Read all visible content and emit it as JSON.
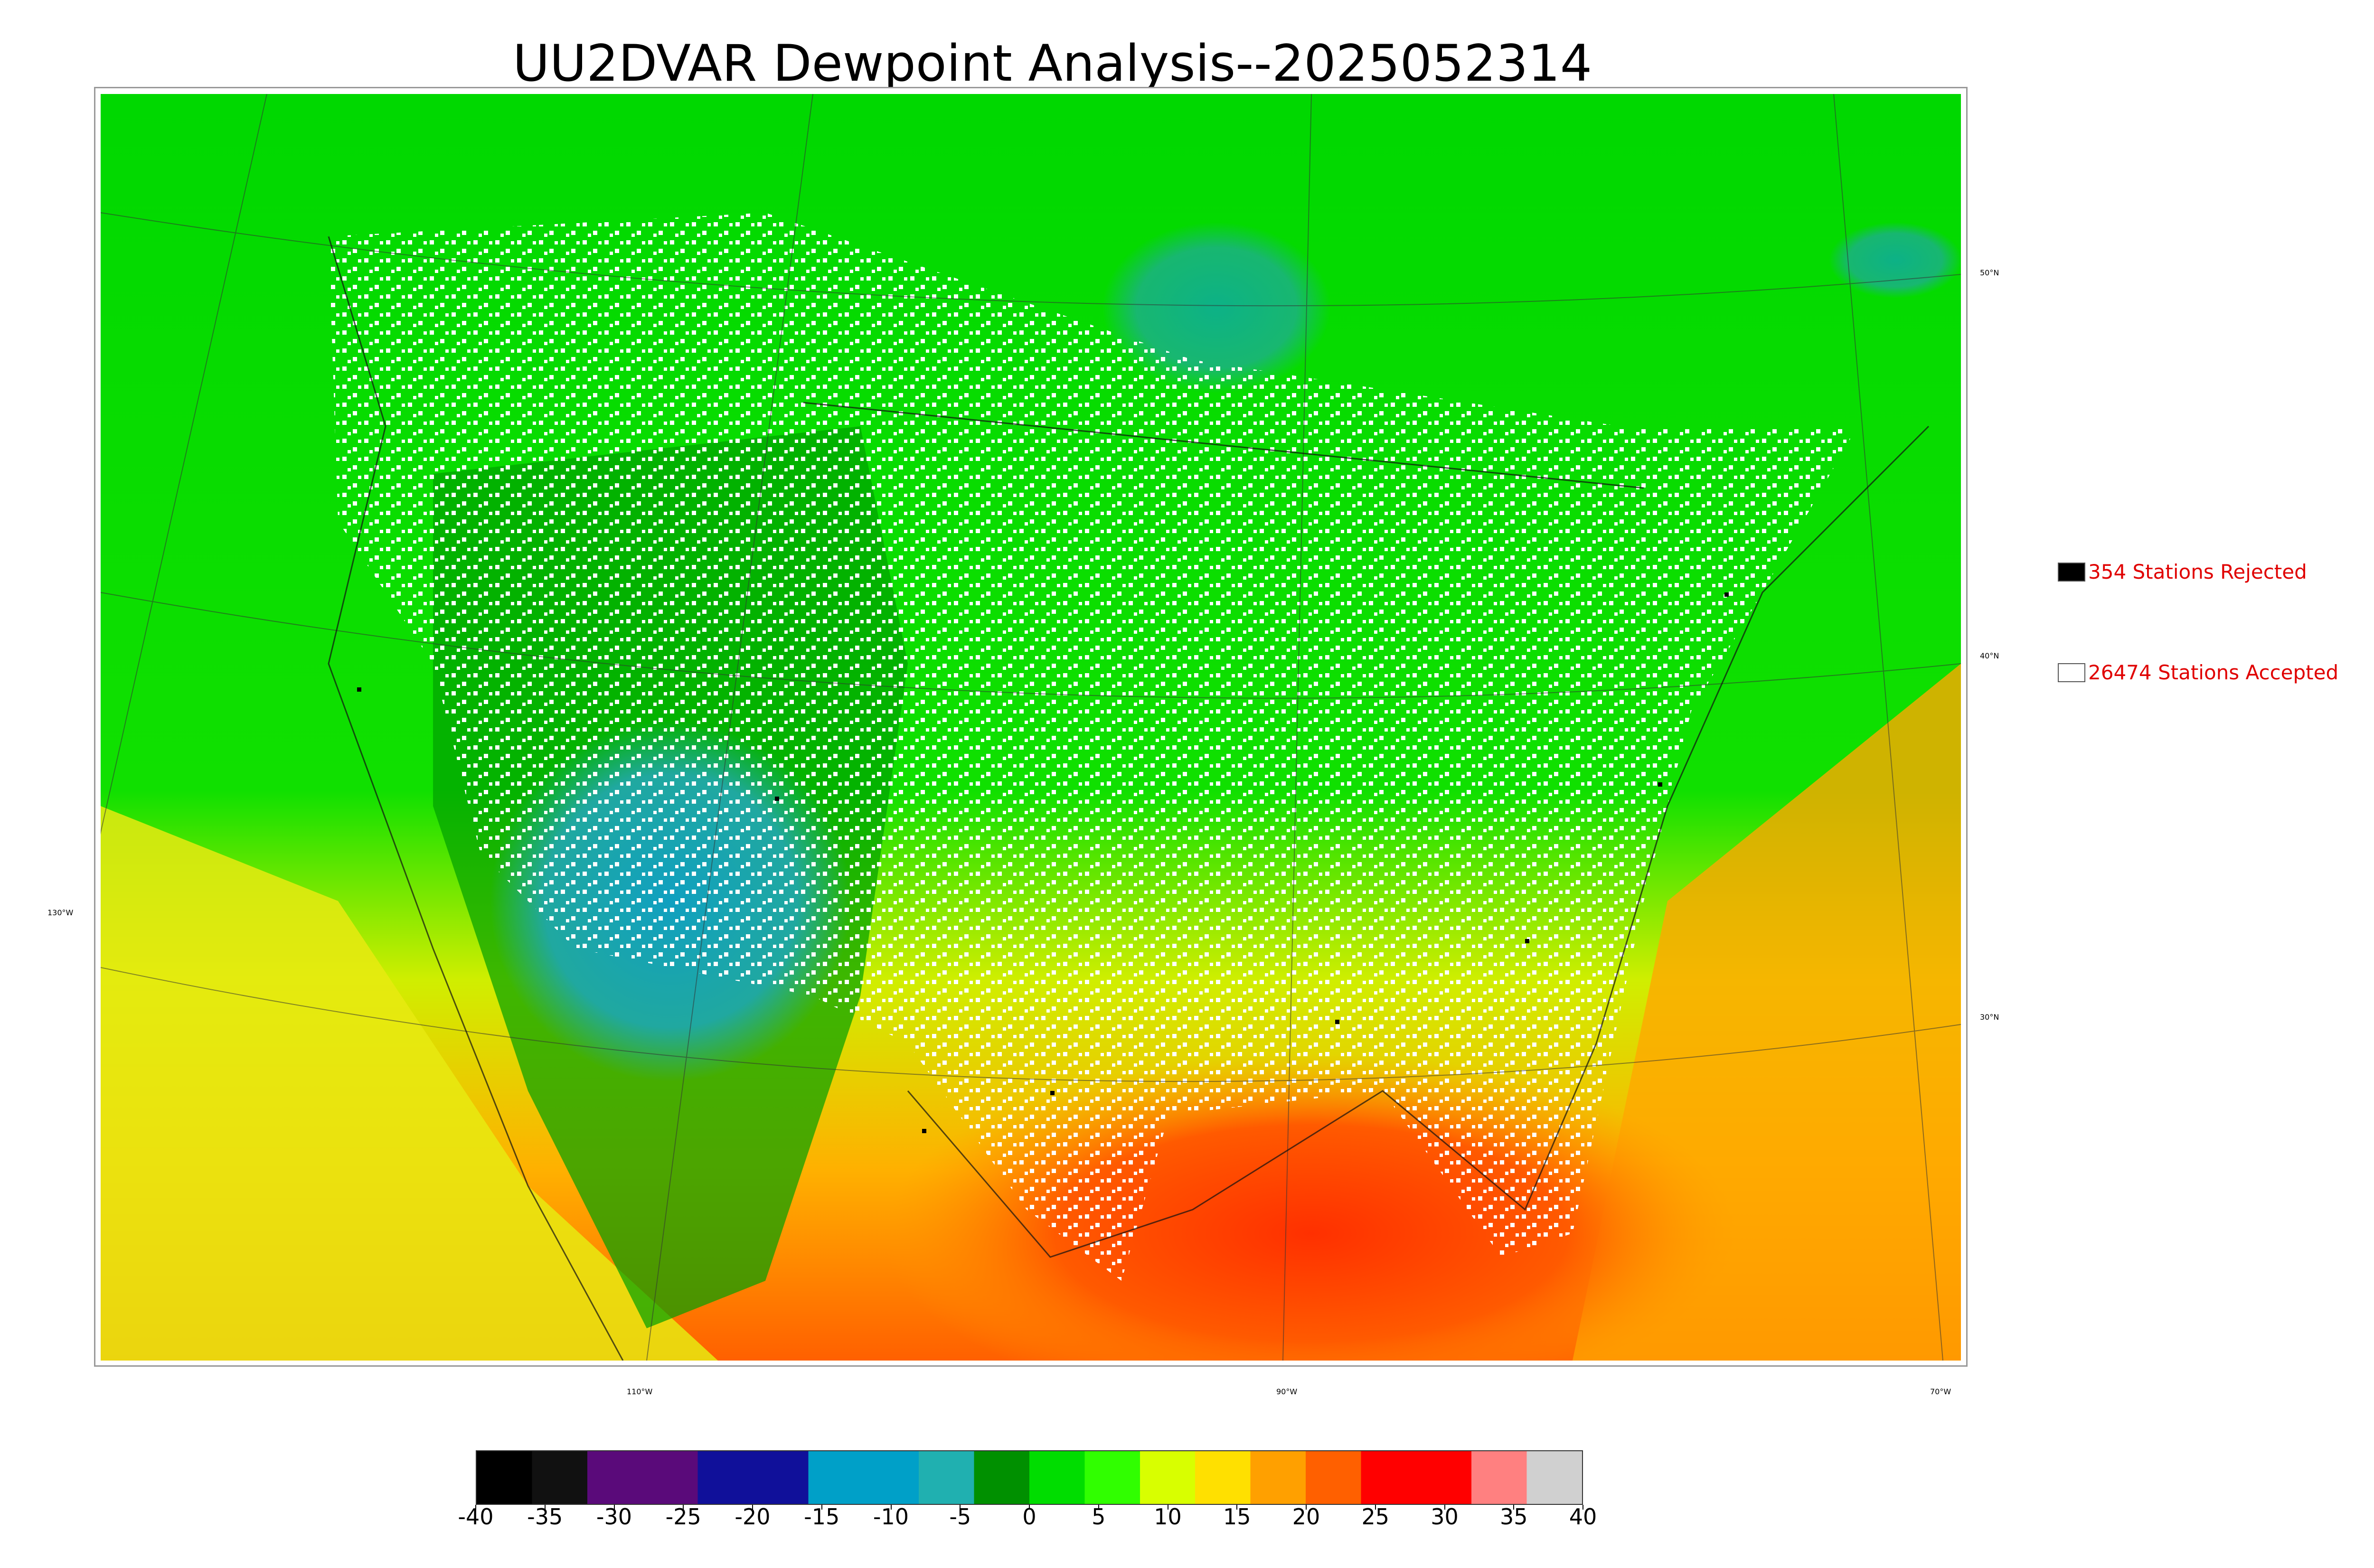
{
  "title": "UU2DVAR Dewpoint Analysis--2025052314",
  "map": {
    "latitude_labels": [
      "50°N",
      "40°N",
      "30°N"
    ],
    "longitude_labels": [
      "130°W",
      "110°W",
      "90°W",
      "70°W"
    ]
  },
  "legend": {
    "rejected": {
      "label": "354 Stations Rejected",
      "swatch_color": "#000000"
    },
    "accepted": {
      "label": "26474 Stations Accepted",
      "swatch_color": "#ffffff"
    }
  },
  "colorbar": {
    "ticks": [
      "-40",
      "-35",
      "-30",
      "-25",
      "-20",
      "-15",
      "-10",
      "-5",
      "0",
      "5",
      "10",
      "15",
      "20",
      "25",
      "30",
      "35",
      "40"
    ],
    "colors": [
      "#000000",
      "#111111",
      "#5a0a7a",
      "#5a0a7a",
      "#10109a",
      "#10109a",
      "#00a0c8",
      "#00a0c8",
      "#20b0b0",
      "#009000",
      "#00dd00",
      "#30ff00",
      "#d8ff00",
      "#ffe000",
      "#ffa000",
      "#ff6000",
      "#ff0000",
      "#ff0000",
      "#ff8080",
      "#d0d0d0"
    ]
  }
}
